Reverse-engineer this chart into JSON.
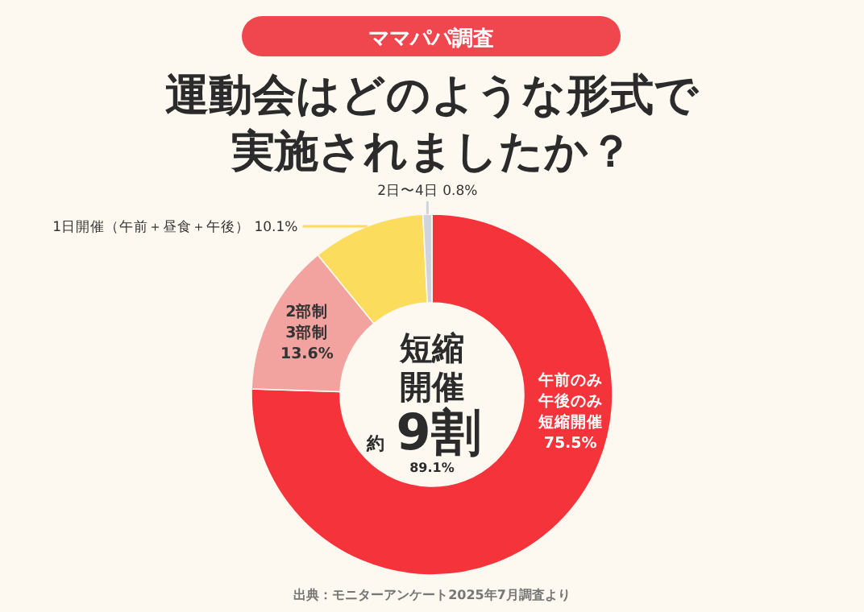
{
  "chart_data": {
    "type": "donut",
    "subtitle": "ママパパ調査",
    "title": "運動会はどのような形式で実施されましたか？",
    "categories": [
      "午前のみ午後のみ短縮開催",
      "2部制3部制",
      "1日開催（午前＋昼食＋午後）",
      "2日〜4日"
    ],
    "values": [
      75.5,
      13.6,
      10.1,
      0.8
    ],
    "value_labels": [
      "75.5%",
      "13.6%",
      "10.1%",
      "0.8%"
    ],
    "colors": [
      "#f5333a",
      "#f2a3a0",
      "#fcdc5c",
      "#d0d4dc"
    ],
    "annotations": [
      "短縮開催",
      "約",
      "9割",
      "89.1%",
      "出典：モニターアンケート2025年7月調査より"
    ]
  }
}
